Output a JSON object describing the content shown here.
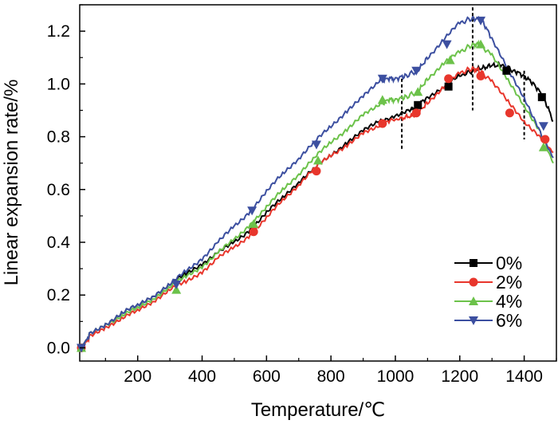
{
  "chart_data": {
    "type": "line",
    "title": "",
    "xlabel": "Temperature/℃",
    "ylabel": "Linear expansion rate/%",
    "xlim": [
      20,
      1500
    ],
    "ylim": [
      -0.05,
      1.3
    ],
    "xticks": [
      200,
      400,
      600,
      800,
      1000,
      1200,
      1400
    ],
    "yticks": [
      0.0,
      0.2,
      0.4,
      0.6,
      0.8,
      1.0,
      1.2
    ],
    "xtick_labels": [
      "200",
      "400",
      "600",
      "800",
      "1000",
      "1200",
      "1400"
    ],
    "ytick_labels": [
      "0.0",
      "0.2",
      "0.4",
      "0.6",
      "0.8",
      "1.0",
      "1.2"
    ],
    "grid": false,
    "legend_position": "bottom-right",
    "reference_lines_x": [
      1020,
      1240,
      1400
    ],
    "series": [
      {
        "name": "0%",
        "color": "#000000",
        "marker": "square",
        "x": [
          25,
          50,
          100,
          150,
          200,
          250,
          300,
          350,
          400,
          450,
          500,
          550,
          600,
          650,
          700,
          750,
          800,
          850,
          900,
          950,
          1000,
          1050,
          1070,
          1100,
          1150,
          1200,
          1240,
          1270,
          1300,
          1330,
          1370,
          1400,
          1430,
          1460,
          1490
        ],
        "y": [
          0.0,
          0.05,
          0.09,
          0.13,
          0.16,
          0.2,
          0.24,
          0.28,
          0.32,
          0.36,
          0.4,
          0.45,
          0.51,
          0.57,
          0.63,
          0.68,
          0.73,
          0.78,
          0.82,
          0.86,
          0.88,
          0.9,
          0.92,
          0.95,
          0.99,
          1.03,
          1.05,
          1.06,
          1.07,
          1.07,
          1.05,
          1.03,
          1.0,
          0.95,
          0.86
        ],
        "marker_x": [
          25,
          1070,
          1165,
          1345,
          1455
        ],
        "marker_y": [
          0.0,
          0.92,
          0.99,
          1.05,
          0.95
        ]
      },
      {
        "name": "2%",
        "color": "#e8362c",
        "marker": "circle",
        "x": [
          25,
          50,
          100,
          150,
          200,
          250,
          300,
          350,
          400,
          450,
          500,
          550,
          600,
          650,
          700,
          750,
          800,
          850,
          900,
          950,
          980,
          1020,
          1050,
          1070,
          1100,
          1150,
          1200,
          1240,
          1260,
          1300,
          1350,
          1400,
          1450,
          1490
        ],
        "y": [
          0.0,
          0.04,
          0.08,
          0.11,
          0.14,
          0.18,
          0.22,
          0.25,
          0.29,
          0.34,
          0.38,
          0.43,
          0.49,
          0.56,
          0.62,
          0.68,
          0.73,
          0.77,
          0.81,
          0.84,
          0.86,
          0.87,
          0.88,
          0.89,
          0.93,
          0.99,
          1.04,
          1.06,
          1.05,
          1.01,
          0.93,
          0.86,
          0.8,
          0.74
        ],
        "marker_x": [
          25,
          560,
          755,
          960,
          1065,
          1165,
          1265,
          1355,
          1465
        ],
        "marker_y": [
          0.0,
          0.44,
          0.67,
          0.85,
          0.89,
          1.02,
          1.03,
          0.89,
          0.79
        ]
      },
      {
        "name": "4%",
        "color": "#6cc24a",
        "marker": "triangle-up",
        "x": [
          25,
          50,
          100,
          150,
          200,
          250,
          300,
          350,
          400,
          450,
          500,
          550,
          600,
          650,
          700,
          750,
          800,
          850,
          900,
          950,
          980,
          1000,
          1030,
          1070,
          1100,
          1150,
          1200,
          1240,
          1260,
          1300,
          1350,
          1400,
          1450,
          1490
        ],
        "y": [
          0.0,
          0.05,
          0.09,
          0.12,
          0.15,
          0.19,
          0.23,
          0.27,
          0.31,
          0.36,
          0.41,
          0.47,
          0.53,
          0.6,
          0.66,
          0.72,
          0.78,
          0.83,
          0.88,
          0.92,
          0.94,
          0.94,
          0.95,
          0.97,
          1.02,
          1.08,
          1.12,
          1.15,
          1.15,
          1.11,
          1.01,
          0.92,
          0.82,
          0.7
        ],
        "marker_x": [
          25,
          320,
          560,
          760,
          960,
          1070,
          1170,
          1265,
          1460
        ],
        "marker_y": [
          0.0,
          0.22,
          0.47,
          0.71,
          0.94,
          0.97,
          1.09,
          1.15,
          0.76
        ]
      },
      {
        "name": "6%",
        "color": "#3c4fa0",
        "marker": "triangle-down",
        "x": [
          25,
          50,
          100,
          150,
          200,
          250,
          300,
          350,
          400,
          450,
          500,
          550,
          600,
          650,
          700,
          750,
          800,
          850,
          900,
          950,
          980,
          1000,
          1030,
          1070,
          1100,
          1150,
          1200,
          1240,
          1270,
          1300,
          1350,
          1400,
          1450,
          1490
        ],
        "y": [
          0.0,
          0.05,
          0.09,
          0.13,
          0.16,
          0.2,
          0.24,
          0.29,
          0.34,
          0.4,
          0.46,
          0.52,
          0.59,
          0.66,
          0.72,
          0.78,
          0.84,
          0.9,
          0.95,
          1.01,
          1.02,
          1.02,
          1.03,
          1.05,
          1.1,
          1.17,
          1.23,
          1.25,
          1.24,
          1.17,
          1.05,
          0.95,
          0.82,
          0.72
        ],
        "marker_x": [
          25,
          320,
          555,
          755,
          960,
          1065,
          1160,
          1265,
          1460
        ],
        "marker_y": [
          0.0,
          0.24,
          0.52,
          0.77,
          1.02,
          1.05,
          1.15,
          1.24,
          0.84
        ]
      }
    ]
  }
}
